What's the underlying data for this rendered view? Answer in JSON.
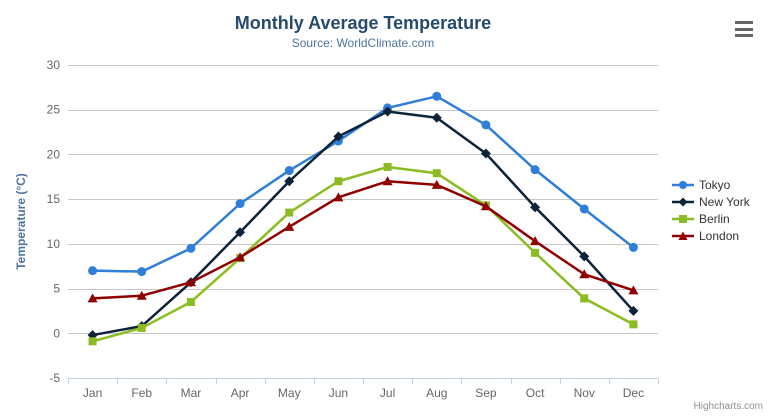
{
  "chart_data": {
    "type": "line",
    "title": "Monthly Average Temperature",
    "subtitle": "Source: WorldClimate.com",
    "categories": [
      "Jan",
      "Feb",
      "Mar",
      "Apr",
      "May",
      "Jun",
      "Jul",
      "Aug",
      "Sep",
      "Oct",
      "Nov",
      "Dec"
    ],
    "xlabel": "",
    "ylabel": "Temperature (°C)",
    "ylim": [
      -5,
      30
    ],
    "ytick_interval": 5,
    "grid": true,
    "legend_position": "right",
    "series": [
      {
        "name": "Tokyo",
        "color": "#2f7ed8",
        "marker": "circle",
        "values": [
          7.0,
          6.9,
          9.5,
          14.5,
          18.2,
          21.5,
          25.2,
          26.5,
          23.3,
          18.3,
          13.9,
          9.6
        ]
      },
      {
        "name": "New York",
        "color": "#0d233a",
        "marker": "diamond",
        "values": [
          -0.2,
          0.8,
          5.7,
          11.3,
          17.0,
          22.0,
          24.8,
          24.1,
          20.1,
          14.1,
          8.6,
          2.5
        ]
      },
      {
        "name": "Berlin",
        "color": "#8bbc21",
        "marker": "square",
        "values": [
          -0.9,
          0.6,
          3.5,
          8.4,
          13.5,
          17.0,
          18.6,
          17.9,
          14.3,
          9.0,
          3.9,
          1.0
        ]
      },
      {
        "name": "London",
        "color": "#910000",
        "marker": "triangle",
        "values": [
          3.9,
          4.2,
          5.7,
          8.5,
          11.9,
          15.2,
          17.0,
          16.6,
          14.2,
          10.3,
          6.6,
          4.8
        ]
      }
    ]
  },
  "credits": "Highcharts.com",
  "colors": {
    "title": "#274b6d",
    "subtitle": "#4d759e",
    "grid": "#c8c8c8",
    "axis_line": "#c0d0e0",
    "axis_label": "#666666",
    "menu_icon": "#666666",
    "credits_text": "#909090"
  }
}
